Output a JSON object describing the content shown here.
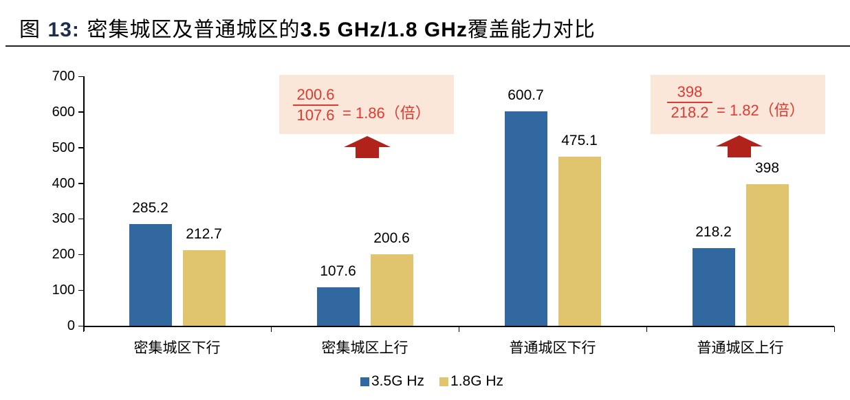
{
  "figure": {
    "label": "图",
    "number": "13:",
    "title_cn_part": "密集城区及普通城区的",
    "title_bold_part": "3.5 GHz/1.8 GHz",
    "title_tail": "覆盖能力对比"
  },
  "colors": {
    "series_35": "#31689f",
    "series_18": "#e0c46e",
    "annotation_bg": "#fbe6da",
    "annotation_text": "#e03a2f",
    "arrow": "#b0221a"
  },
  "annotations": [
    {
      "numerator": "200.6",
      "denominator": "107.6",
      "equation": "= 1.86",
      "unit": "（倍）"
    },
    {
      "numerator": "398",
      "denominator": "218.2",
      "equation": "= 1.82",
      "unit": "（倍）"
    }
  ],
  "chart_data": {
    "type": "bar",
    "title": "密集城区及普通城区的3.5 GHz/1.8 GHz覆盖能力对比",
    "xlabel": "",
    "ylabel": "",
    "categories": [
      "密集城区下行",
      "密集城区上行",
      "普通城区下行",
      "普通城区上行"
    ],
    "series": [
      {
        "name": "3.5G Hz",
        "values": [
          285.2,
          107.6,
          600.7,
          218.2
        ]
      },
      {
        "name": "1.8G Hz",
        "values": [
          212.7,
          200.6,
          475.1,
          398
        ]
      }
    ],
    "value_labels": {
      "3.5G Hz": [
        "285.2",
        "107.6",
        "600.7",
        "218.2"
      ],
      "1.8G Hz": [
        "212.7",
        "200.6",
        "475.1",
        "398"
      ]
    },
    "ylim": [
      0,
      700
    ],
    "yticks": [
      "0",
      "100",
      "200",
      "300",
      "400",
      "500",
      "600",
      "700"
    ],
    "grid": false,
    "legend": {
      "position": "bottom",
      "entries": [
        "3.5G Hz",
        "1.8G Hz"
      ]
    },
    "annotations": [
      "200.6/107.6 = 1.86（倍）",
      "398/218.2 = 1.82（倍）"
    ]
  }
}
